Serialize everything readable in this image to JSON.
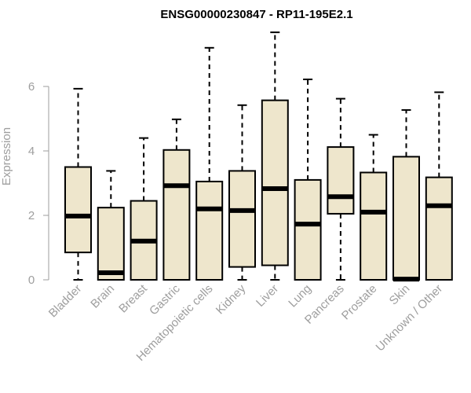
{
  "chart_data": {
    "type": "boxplot",
    "title": "ENSG00000230847 - RP11-195E2.1",
    "ylabel": "Expression",
    "xlabel": "",
    "ylim": [
      0,
      7.8
    ],
    "yticks": [
      0,
      2,
      4,
      6
    ],
    "grid": false,
    "legend": "none",
    "box_fill": "#EEE6CC",
    "stroke": "#000000",
    "categories": [
      "Bladder",
      "Brain",
      "Breast",
      "Gastric",
      "Hematopoietic cells",
      "Kidney",
      "Liver",
      "Lung",
      "Pancreas",
      "Prostate",
      "Skin",
      "Unknown / Other"
    ],
    "boxes": [
      {
        "category": "Bladder",
        "min": 0,
        "q1": 0.85,
        "median": 1.98,
        "q3": 3.5,
        "max": 5.93
      },
      {
        "category": "Brain",
        "min": 0,
        "q1": 0,
        "median": 0.22,
        "q3": 2.24,
        "max": 3.38
      },
      {
        "category": "Breast",
        "min": 0,
        "q1": 0,
        "median": 1.2,
        "q3": 2.45,
        "max": 4.4
      },
      {
        "category": "Gastric",
        "min": 0,
        "q1": 0,
        "median": 2.92,
        "q3": 4.03,
        "max": 4.98
      },
      {
        "category": "Hematopoietic cells",
        "min": 0,
        "q1": 0,
        "median": 2.2,
        "q3": 3.05,
        "max": 7.2
      },
      {
        "category": "Kidney",
        "min": 0,
        "q1": 0.4,
        "median": 2.15,
        "q3": 3.38,
        "max": 5.42
      },
      {
        "category": "Liver",
        "min": 0,
        "q1": 0.45,
        "median": 2.83,
        "q3": 5.57,
        "max": 7.68
      },
      {
        "category": "Lung",
        "min": 0,
        "q1": 0,
        "median": 1.73,
        "q3": 3.1,
        "max": 6.22
      },
      {
        "category": "Pancreas",
        "min": 0,
        "q1": 2.05,
        "median": 2.58,
        "q3": 4.12,
        "max": 5.62
      },
      {
        "category": "Prostate",
        "min": 0,
        "q1": 0,
        "median": 2.1,
        "q3": 3.33,
        "max": 4.5
      },
      {
        "category": "Skin",
        "min": 0,
        "q1": 0,
        "median": 0.02,
        "q3": 3.82,
        "max": 5.27
      },
      {
        "category": "Unknown / Other",
        "min": 0,
        "q1": 0,
        "median": 2.3,
        "q3": 3.18,
        "max": 5.82
      }
    ]
  }
}
